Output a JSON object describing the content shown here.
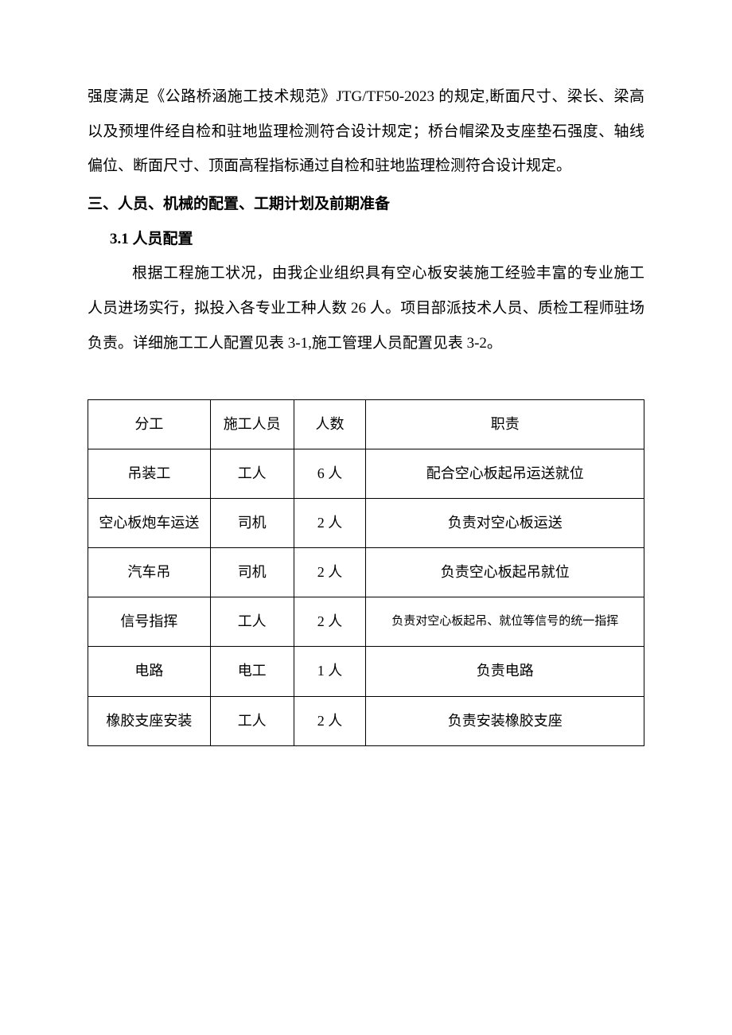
{
  "paragraphs": {
    "p1": "强度满足《公路桥涵施工技术规范》JTG/TF50-2023 的规定,断面尺寸、梁长、梁高以及预埋件经自检和驻地监理检测符合设计规定；桥台帽梁及支座垫石强度、轴线偏位、断面尺寸、顶面高程指标通过自检和驻地监理检测符合设计规定。",
    "h1": "三、人员、机械的配置、工期计划及前期准备",
    "h2": "3.1 人员配置",
    "p2": "根据工程施工状况，由我企业组织具有空心板安装施工经验丰富的专业施工人员进场实行，拟投入各专业工种人数 26 人。项目部派技术人员、质检工程师驻场负责。详细施工工人配置见表 3-1,施工管理人员配置见表 3-2。"
  },
  "table": {
    "headers": [
      "分工",
      "施工人员",
      "人数",
      "职责"
    ],
    "rows": [
      [
        "吊装工",
        "工人",
        "6 人",
        "配合空心板起吊运送就位"
      ],
      [
        "空心板炮车运送",
        "司机",
        "2 人",
        "负责对空心板运送"
      ],
      [
        "汽车吊",
        "司机",
        "2 人",
        "负责空心板起吊就位"
      ],
      [
        "信号指挥",
        "工人",
        "2 人",
        "负责对空心板起吊、就位等信号的统一指挥"
      ],
      [
        "电路",
        "电工",
        "1 人",
        "负责电路"
      ],
      [
        "橡胶支座安装",
        "工人",
        "2 人",
        "负责安装橡胶支座"
      ]
    ],
    "smallTextRowIndex": 3
  }
}
